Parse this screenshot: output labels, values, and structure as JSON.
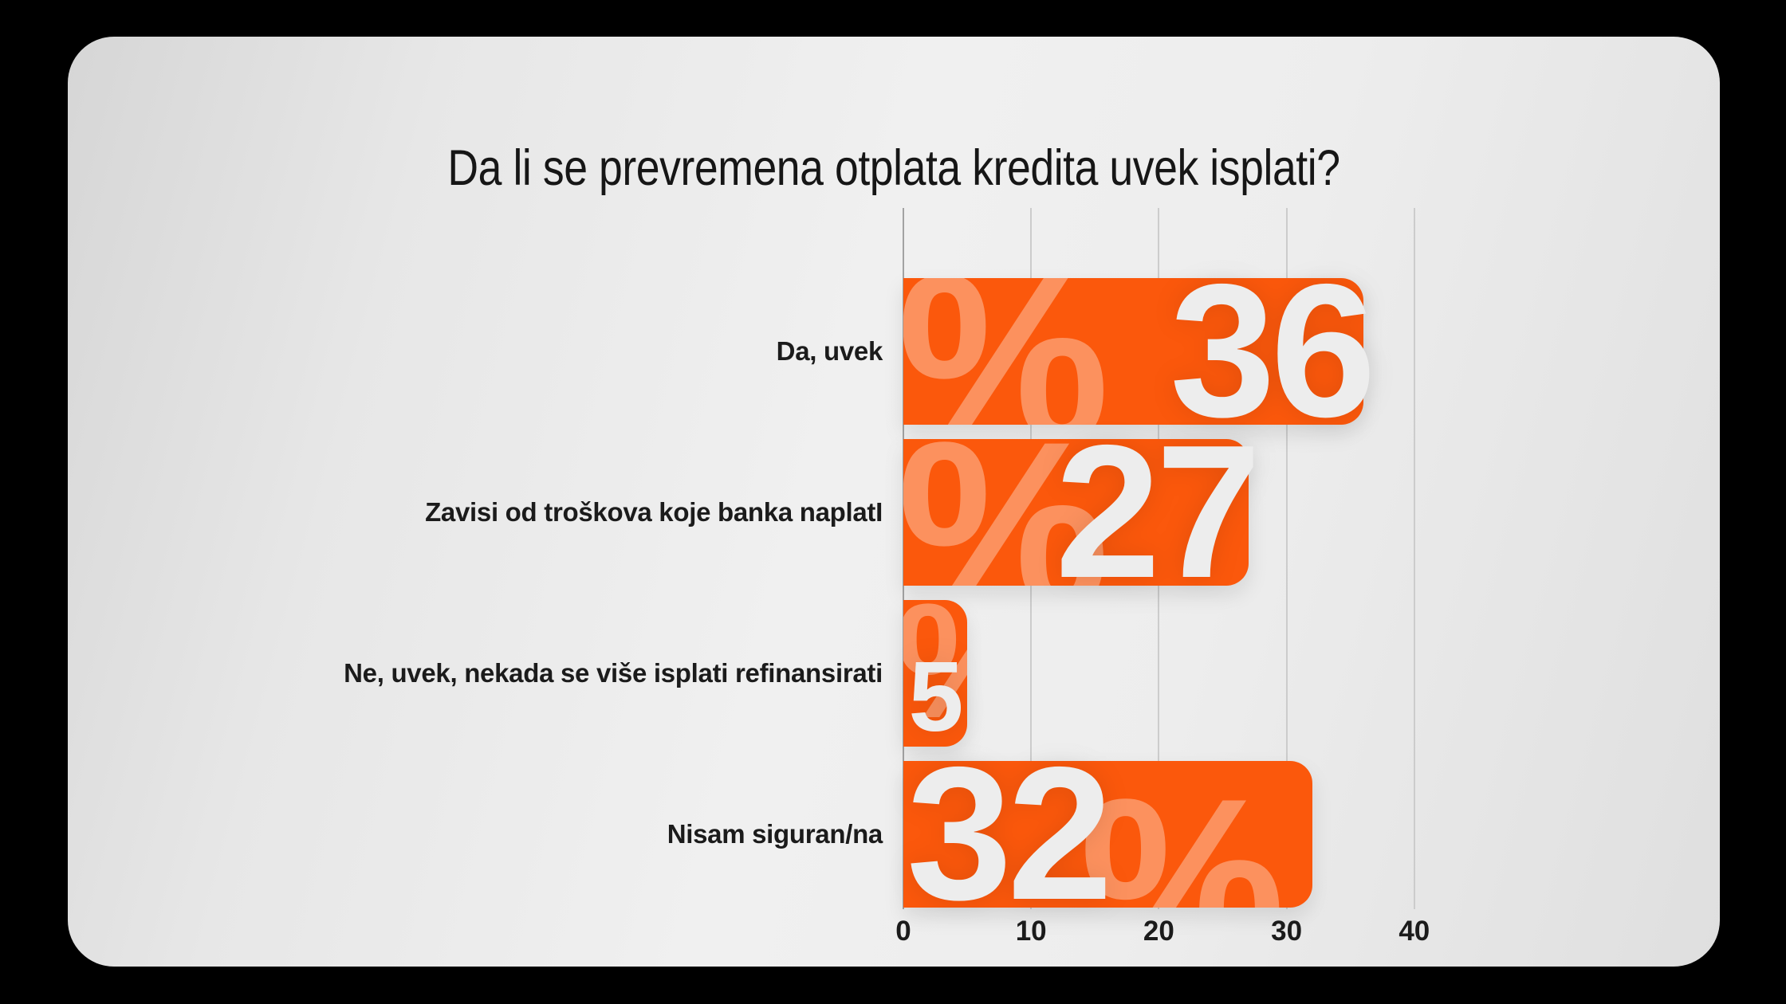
{
  "title": "Da li se prevremena otplata kredita uvek isplati?",
  "chart_data": {
    "type": "bar",
    "orientation": "horizontal",
    "title": "Da li se prevremena otplata kredita uvek isplati?",
    "categories": [
      "Da, uvek",
      "Zavisi od troškova koje banka naplatI",
      "Ne, uvek, nekada se više isplati refinansirati",
      "Nisam siguran/na"
    ],
    "values": [
      36,
      27,
      5,
      32
    ],
    "unit": "percent",
    "watermark_glyph": "%",
    "x_ticks": [
      0,
      10,
      20,
      30,
      40
    ],
    "xlim": [
      0,
      40
    ],
    "xlabel": "",
    "ylabel": "",
    "grid": "vertical-only",
    "legend": "none",
    "colors": {
      "bar": "#FB580C",
      "bar_watermark": "rgba(255,255,255,0.34)",
      "value_label": "#EDEDED",
      "text": "#1B1B1B",
      "card_background": "#EAEAEA",
      "page_background": "#000000",
      "gridline": "#CCCCCC",
      "zero_line": "#A3A3A3"
    }
  }
}
